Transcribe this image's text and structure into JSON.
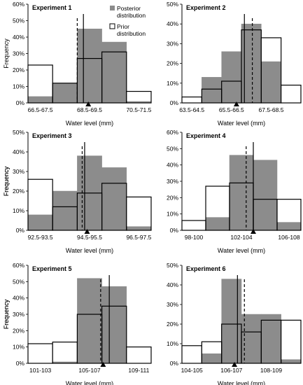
{
  "colors": {
    "posterior": "#8c8c8c",
    "prior_fill": "#ffffff",
    "prior_edge": "#000000",
    "line": "#000000"
  },
  "legend": {
    "posterior": "Posterior\ndistribution",
    "prior": "Prior\ndistribution"
  },
  "chart_data": [
    {
      "type": "bar",
      "title": "Experiment 1",
      "xlabel": "Water level (mm)",
      "ylabel": "Frequency",
      "ylim": [
        0,
        60
      ],
      "yticks": [
        "0%",
        "10%",
        "20%",
        "30%",
        "40%",
        "50%",
        "60%"
      ],
      "categories": [
        "66.5-67.5",
        "",
        "68.5-69.5",
        "",
        "70.5-71.5"
      ],
      "series": [
        {
          "name": "Posterior distribution",
          "values": [
            4,
            12,
            45,
            37,
            1
          ]
        },
        {
          "name": "Prior distribution",
          "values": [
            23,
            12,
            27,
            31,
            7
          ]
        }
      ],
      "solid_line": 2.25,
      "dashed_line": 2.0,
      "marker": 2.45,
      "legend": true
    },
    {
      "type": "bar",
      "title": "Experiment 2",
      "xlabel": "Water level (mm)",
      "ylabel": "",
      "ylim": [
        0,
        50
      ],
      "yticks": [
        "0%",
        "10%",
        "20%",
        "30%",
        "40%",
        "50%"
      ],
      "categories": [
        "63.5-64.5",
        "",
        "65.5-66.5",
        "",
        "67.5-68.5",
        ""
      ],
      "series": [
        {
          "name": "Posterior distribution",
          "values": [
            0,
            13,
            26,
            40,
            21,
            0
          ]
        },
        {
          "name": "Prior distribution",
          "values": [
            3,
            7,
            11,
            37,
            33,
            9
          ]
        }
      ],
      "solid_line": 3.15,
      "dashed_line": 3.55,
      "marker": 2.75,
      "legend": false
    },
    {
      "type": "bar",
      "title": "Experiment 3",
      "xlabel": "Water level (mm)",
      "ylabel": "Frequency",
      "ylim": [
        0,
        50
      ],
      "yticks": [
        "0%",
        "10%",
        "20%",
        "30%",
        "40%",
        "50%"
      ],
      "categories": [
        "92.5-93.5",
        "",
        "94.5-95.5",
        "",
        "96.5-97.5"
      ],
      "series": [
        {
          "name": "Posterior distribution",
          "values": [
            8,
            20,
            38,
            32,
            2
          ]
        },
        {
          "name": "Prior distribution",
          "values": [
            26,
            12,
            19,
            24,
            17
          ]
        }
      ],
      "solid_line": 2.3,
      "dashed_line": 2.2,
      "marker": 2.4,
      "legend": false
    },
    {
      "type": "bar",
      "title": "Experiment 4",
      "xlabel": "Water level (mm)",
      "ylabel": "Frequency",
      "ylim": [
        0,
        60
      ],
      "yticks": [
        "0%",
        "10%",
        "20%",
        "30%",
        "40%",
        "50%",
        "60%"
      ],
      "categories": [
        "98-100",
        "",
        "102-104",
        "",
        "106-108"
      ],
      "series": [
        {
          "name": "Posterior distribution",
          "values": [
            0,
            8,
            46,
            43,
            5
          ]
        },
        {
          "name": "Prior distribution",
          "values": [
            6,
            27,
            29,
            19,
            19
          ]
        }
      ],
      "solid_line": 3.0,
      "dashed_line": 2.7,
      "marker": 3.0,
      "legend": false
    },
    {
      "type": "bar",
      "title": "Experiment 5",
      "xlabel": "Water level (mm)",
      "ylabel": "Frequency",
      "ylim": [
        0,
        60
      ],
      "yticks": [
        "0%",
        "10%",
        "20%",
        "30%",
        "40%",
        "50%",
        "60%"
      ],
      "categories": [
        "101-103",
        "",
        "105-107",
        "",
        "109-111"
      ],
      "series": [
        {
          "name": "Posterior distribution",
          "values": [
            0,
            1,
            52,
            47,
            0
          ]
        },
        {
          "name": "Prior distribution",
          "values": [
            12,
            13,
            30,
            35,
            10
          ]
        }
      ],
      "solid_line": 3.3,
      "dashed_line": 2.95,
      "marker": 3.05,
      "legend": false
    },
    {
      "type": "bar",
      "title": "Experiment 6",
      "xlabel": "Water level (mm)",
      "ylabel": "Frequency",
      "ylim": [
        0,
        50
      ],
      "yticks": [
        "0%",
        "10%",
        "20%",
        "30%",
        "40%",
        "50%"
      ],
      "categories": [
        "104-105",
        "",
        "106-107",
        "",
        "108-109",
        ""
      ],
      "series": [
        {
          "name": "Posterior distribution",
          "values": [
            0,
            5,
            43,
            25,
            25,
            2
          ]
        },
        {
          "name": "Prior distribution",
          "values": [
            9,
            11,
            20,
            16,
            22,
            22
          ]
        }
      ],
      "solid_line": 2.8,
      "dashed_line": 3.15,
      "marker": 2.65,
      "legend": false
    }
  ]
}
